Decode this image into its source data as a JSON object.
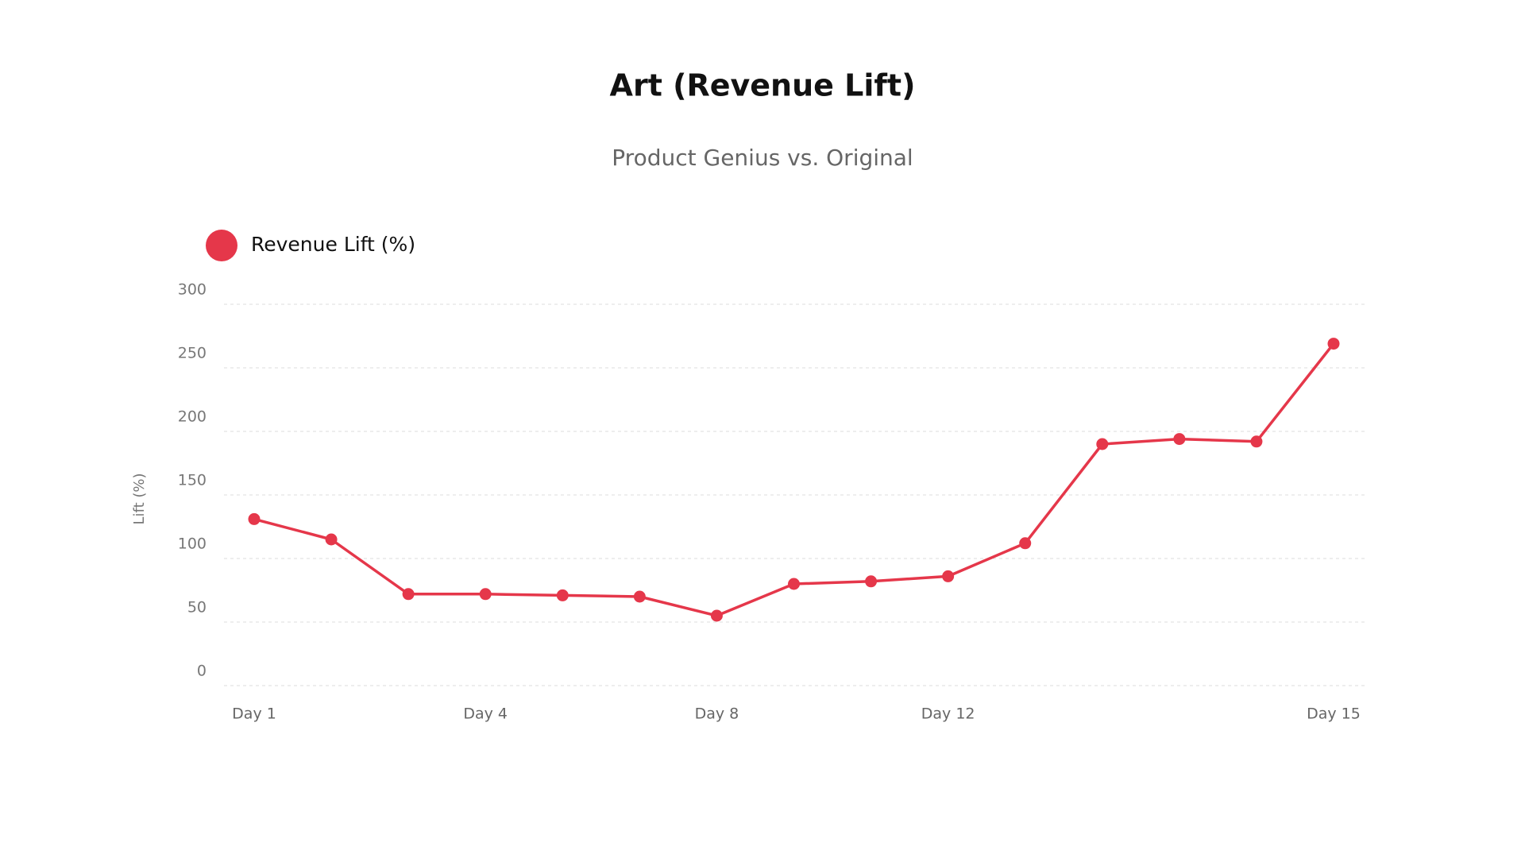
{
  "chart_data": {
    "type": "line",
    "title": "Art (Revenue Lift)",
    "subtitle": "Product Genius vs. Original",
    "y_label": "Lift (%)",
    "categories": [
      "Day 1",
      null,
      null,
      "Day 4",
      null,
      null,
      "Day 8",
      null,
      null,
      "Day 12",
      null,
      null,
      null,
      null,
      "Day 15"
    ],
    "series": [
      {
        "name": "Revenue Lift (%)",
        "color": "#e5374a",
        "values": [
          131,
          115,
          72,
          72,
          71,
          70,
          55,
          80,
          82,
          86,
          112,
          190,
          194,
          192,
          269
        ]
      }
    ],
    "ylim": [
      0,
      300
    ],
    "yticks": [
      0,
      50,
      100,
      150,
      200,
      250,
      300
    ],
    "grid": true,
    "legend": "top-left"
  }
}
